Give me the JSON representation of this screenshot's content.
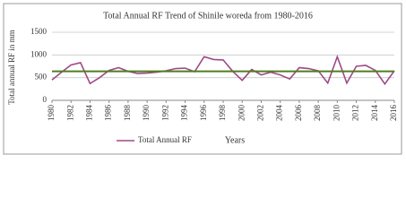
{
  "chart_data": {
    "type": "line",
    "title": "Total Annual RF Trend of Shinile woreda from 1980-2016",
    "x_label": "Years",
    "y_label": "Total annual RF in mm",
    "x": [
      1980,
      1981,
      1982,
      1983,
      1984,
      1985,
      1986,
      1987,
      1988,
      1989,
      1990,
      1991,
      1992,
      1993,
      1994,
      1995,
      1996,
      1997,
      1998,
      1999,
      2000,
      2001,
      2002,
      2003,
      2004,
      2005,
      2006,
      2007,
      2008,
      2009,
      2010,
      2011,
      2012,
      2013,
      2014,
      2015,
      2016
    ],
    "series": [
      {
        "name": "Total Annual RF",
        "color": "#9e4a86",
        "values": [
          450,
          620,
          780,
          830,
          370,
          500,
          660,
          720,
          640,
          590,
          600,
          620,
          650,
          700,
          710,
          630,
          960,
          900,
          890,
          640,
          440,
          680,
          560,
          620,
          560,
          470,
          720,
          700,
          650,
          380,
          960,
          380,
          750,
          770,
          660,
          360,
          650
        ]
      }
    ],
    "trend": {
      "color": "#4f7d1e",
      "values": [
        640,
        640
      ]
    },
    "xlim": [
      1980,
      2016
    ],
    "xticks": [
      1980,
      1982,
      1984,
      1986,
      1988,
      1990,
      1992,
      1994,
      1996,
      1998,
      2000,
      2002,
      2004,
      2006,
      2008,
      2010,
      2012,
      2014,
      2016
    ],
    "ylim": [
      0,
      1500
    ],
    "yticks": [
      0,
      500,
      1000,
      1500
    ],
    "grid": true,
    "legend": "bottom"
  }
}
